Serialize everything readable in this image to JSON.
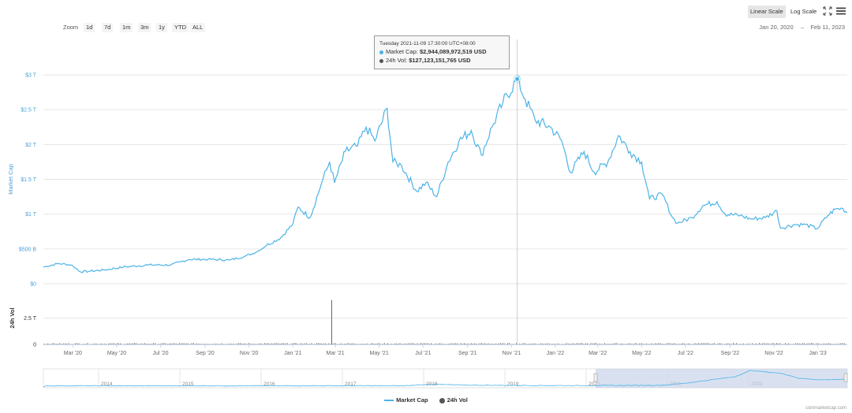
{
  "toolbar": {
    "linear_label": "Linear Scale",
    "log_label": "Log Scale",
    "fullscreen_icon": "expand-icon",
    "menu_icon": "hamburger-icon"
  },
  "zoom": {
    "label": "Zoom",
    "options": [
      "1d",
      "7d",
      "1m",
      "3m",
      "1y",
      "YTD",
      "ALL"
    ]
  },
  "date_range": {
    "from": "Jan 20, 2020",
    "arrow": "→",
    "to": "Feb 11, 2023"
  },
  "tooltip": {
    "date": "Tuesday 2021-11-09 17:30:00 UTC+08:00",
    "mc_label": "Market Cap:",
    "mc_value": "$2,944,089,972,519 USD",
    "vol_label": "24h Vol:",
    "vol_value": "$127,123,151,765 USD"
  },
  "legend": {
    "market_cap": "Market Cap",
    "volume": "24h Vol"
  },
  "credit": "coinmarketcap.com",
  "colors": {
    "line": "#4cb3e6",
    "axis_text": "#4a9fd6",
    "volume": "#666666",
    "navigator_fill": "#c9d4ea",
    "grid": "#e6e6e6"
  },
  "chart_data": {
    "type": "line",
    "title": "",
    "ylabel": "Market Cap",
    "ylim": [
      0,
      3.0
    ],
    "yticks": [
      0,
      0.5,
      1.0,
      1.5,
      2.0,
      2.5,
      3.0
    ],
    "ytick_labels": [
      "$0",
      "$500 B",
      "$1 T",
      "$1.5 T",
      "$2 T",
      "$2.5 T",
      "$3 T"
    ],
    "xlabel": "",
    "x_start": "2020-01-20",
    "x_end": "2023-02-11",
    "xticks": [
      {
        "date": "2020-03-01",
        "label": "Mar '20"
      },
      {
        "date": "2020-05-01",
        "label": "May '20"
      },
      {
        "date": "2020-07-01",
        "label": "Jul '20"
      },
      {
        "date": "2020-09-01",
        "label": "Sep '20"
      },
      {
        "date": "2020-11-01",
        "label": "Nov '20"
      },
      {
        "date": "2021-01-01",
        "label": "Jan '21"
      },
      {
        "date": "2021-03-01",
        "label": "Mar '21"
      },
      {
        "date": "2021-05-01",
        "label": "May '21"
      },
      {
        "date": "2021-07-01",
        "label": "Jul '21"
      },
      {
        "date": "2021-09-01",
        "label": "Sep '21"
      },
      {
        "date": "2021-11-01",
        "label": "Nov '21"
      },
      {
        "date": "2022-01-01",
        "label": "Jan '22"
      },
      {
        "date": "2022-03-01",
        "label": "Mar '22"
      },
      {
        "date": "2022-05-01",
        "label": "May '22"
      },
      {
        "date": "2022-07-01",
        "label": "Jul '22"
      },
      {
        "date": "2022-09-01",
        "label": "Sep '22"
      },
      {
        "date": "2022-11-01",
        "label": "Nov '22"
      },
      {
        "date": "2023-01-01",
        "label": "Jan '23"
      }
    ],
    "series": [
      {
        "name": "Market Cap",
        "unit": "trillion USD",
        "points": [
          [
            "2020-01-20",
            0.24
          ],
          [
            "2020-02-10",
            0.29
          ],
          [
            "2020-02-28",
            0.27
          ],
          [
            "2020-03-12",
            0.17
          ],
          [
            "2020-03-25",
            0.18
          ],
          [
            "2020-04-15",
            0.2
          ],
          [
            "2020-05-10",
            0.24
          ],
          [
            "2020-06-15",
            0.27
          ],
          [
            "2020-07-15",
            0.27
          ],
          [
            "2020-08-10",
            0.35
          ],
          [
            "2020-09-05",
            0.35
          ],
          [
            "2020-10-05",
            0.34
          ],
          [
            "2020-10-25",
            0.39
          ],
          [
            "2020-11-10",
            0.45
          ],
          [
            "2020-11-25",
            0.55
          ],
          [
            "2020-12-15",
            0.66
          ],
          [
            "2021-01-01",
            0.86
          ],
          [
            "2021-01-08",
            1.1
          ],
          [
            "2021-01-25",
            0.95
          ],
          [
            "2021-02-10",
            1.45
          ],
          [
            "2021-02-21",
            1.75
          ],
          [
            "2021-02-28",
            1.45
          ],
          [
            "2021-03-15",
            1.9
          ],
          [
            "2021-04-01",
            1.98
          ],
          [
            "2021-04-13",
            2.25
          ],
          [
            "2021-04-25",
            2.05
          ],
          [
            "2021-05-12",
            2.52
          ],
          [
            "2021-05-20",
            1.75
          ],
          [
            "2021-06-01",
            1.7
          ],
          [
            "2021-06-22",
            1.33
          ],
          [
            "2021-07-05",
            1.45
          ],
          [
            "2021-07-20",
            1.25
          ],
          [
            "2021-08-05",
            1.75
          ],
          [
            "2021-08-20",
            2.05
          ],
          [
            "2021-09-06",
            2.2
          ],
          [
            "2021-09-20",
            1.85
          ],
          [
            "2021-10-05",
            2.25
          ],
          [
            "2021-10-20",
            2.6
          ],
          [
            "2021-11-09",
            2.94
          ],
          [
            "2021-11-20",
            2.65
          ],
          [
            "2021-12-04",
            2.35
          ],
          [
            "2021-12-25",
            2.25
          ],
          [
            "2022-01-10",
            2.05
          ],
          [
            "2022-01-22",
            1.6
          ],
          [
            "2022-02-10",
            1.9
          ],
          [
            "2022-02-24",
            1.6
          ],
          [
            "2022-03-15",
            1.75
          ],
          [
            "2022-03-30",
            2.13
          ],
          [
            "2022-04-15",
            1.9
          ],
          [
            "2022-05-01",
            1.75
          ],
          [
            "2022-05-12",
            1.22
          ],
          [
            "2022-05-30",
            1.28
          ],
          [
            "2022-06-13",
            0.95
          ],
          [
            "2022-06-20",
            0.87
          ],
          [
            "2022-07-10",
            0.95
          ],
          [
            "2022-07-25",
            1.12
          ],
          [
            "2022-08-14",
            1.18
          ],
          [
            "2022-08-25",
            1.0
          ],
          [
            "2022-09-15",
            0.98
          ],
          [
            "2022-09-30",
            0.93
          ],
          [
            "2022-10-20",
            0.95
          ],
          [
            "2022-11-05",
            1.05
          ],
          [
            "2022-11-10",
            0.8
          ],
          [
            "2022-11-30",
            0.85
          ],
          [
            "2022-12-15",
            0.85
          ],
          [
            "2022-12-31",
            0.79
          ],
          [
            "2023-01-15",
            0.98
          ],
          [
            "2023-01-25",
            1.07
          ],
          [
            "2023-02-05",
            1.08
          ],
          [
            "2023-02-11",
            1.02
          ]
        ]
      },
      {
        "name": "24h Vol",
        "unit": "trillion USD",
        "ylim": [
          0,
          5.0
        ],
        "yticks": [
          0,
          2.5
        ],
        "ytick_labels": [
          "0",
          "2.5 T"
        ],
        "ylabel": "24h Vol",
        "typical": 0.1,
        "spikes": [
          [
            "2021-02-24",
            4.2
          ]
        ]
      }
    ],
    "highlight": {
      "date": "2021-11-09",
      "value": 2.94
    },
    "navigator_years": [
      "2014",
      "2015",
      "2016",
      "2017",
      "2018",
      "2019",
      "2020",
      "2021",
      "2022"
    ]
  }
}
